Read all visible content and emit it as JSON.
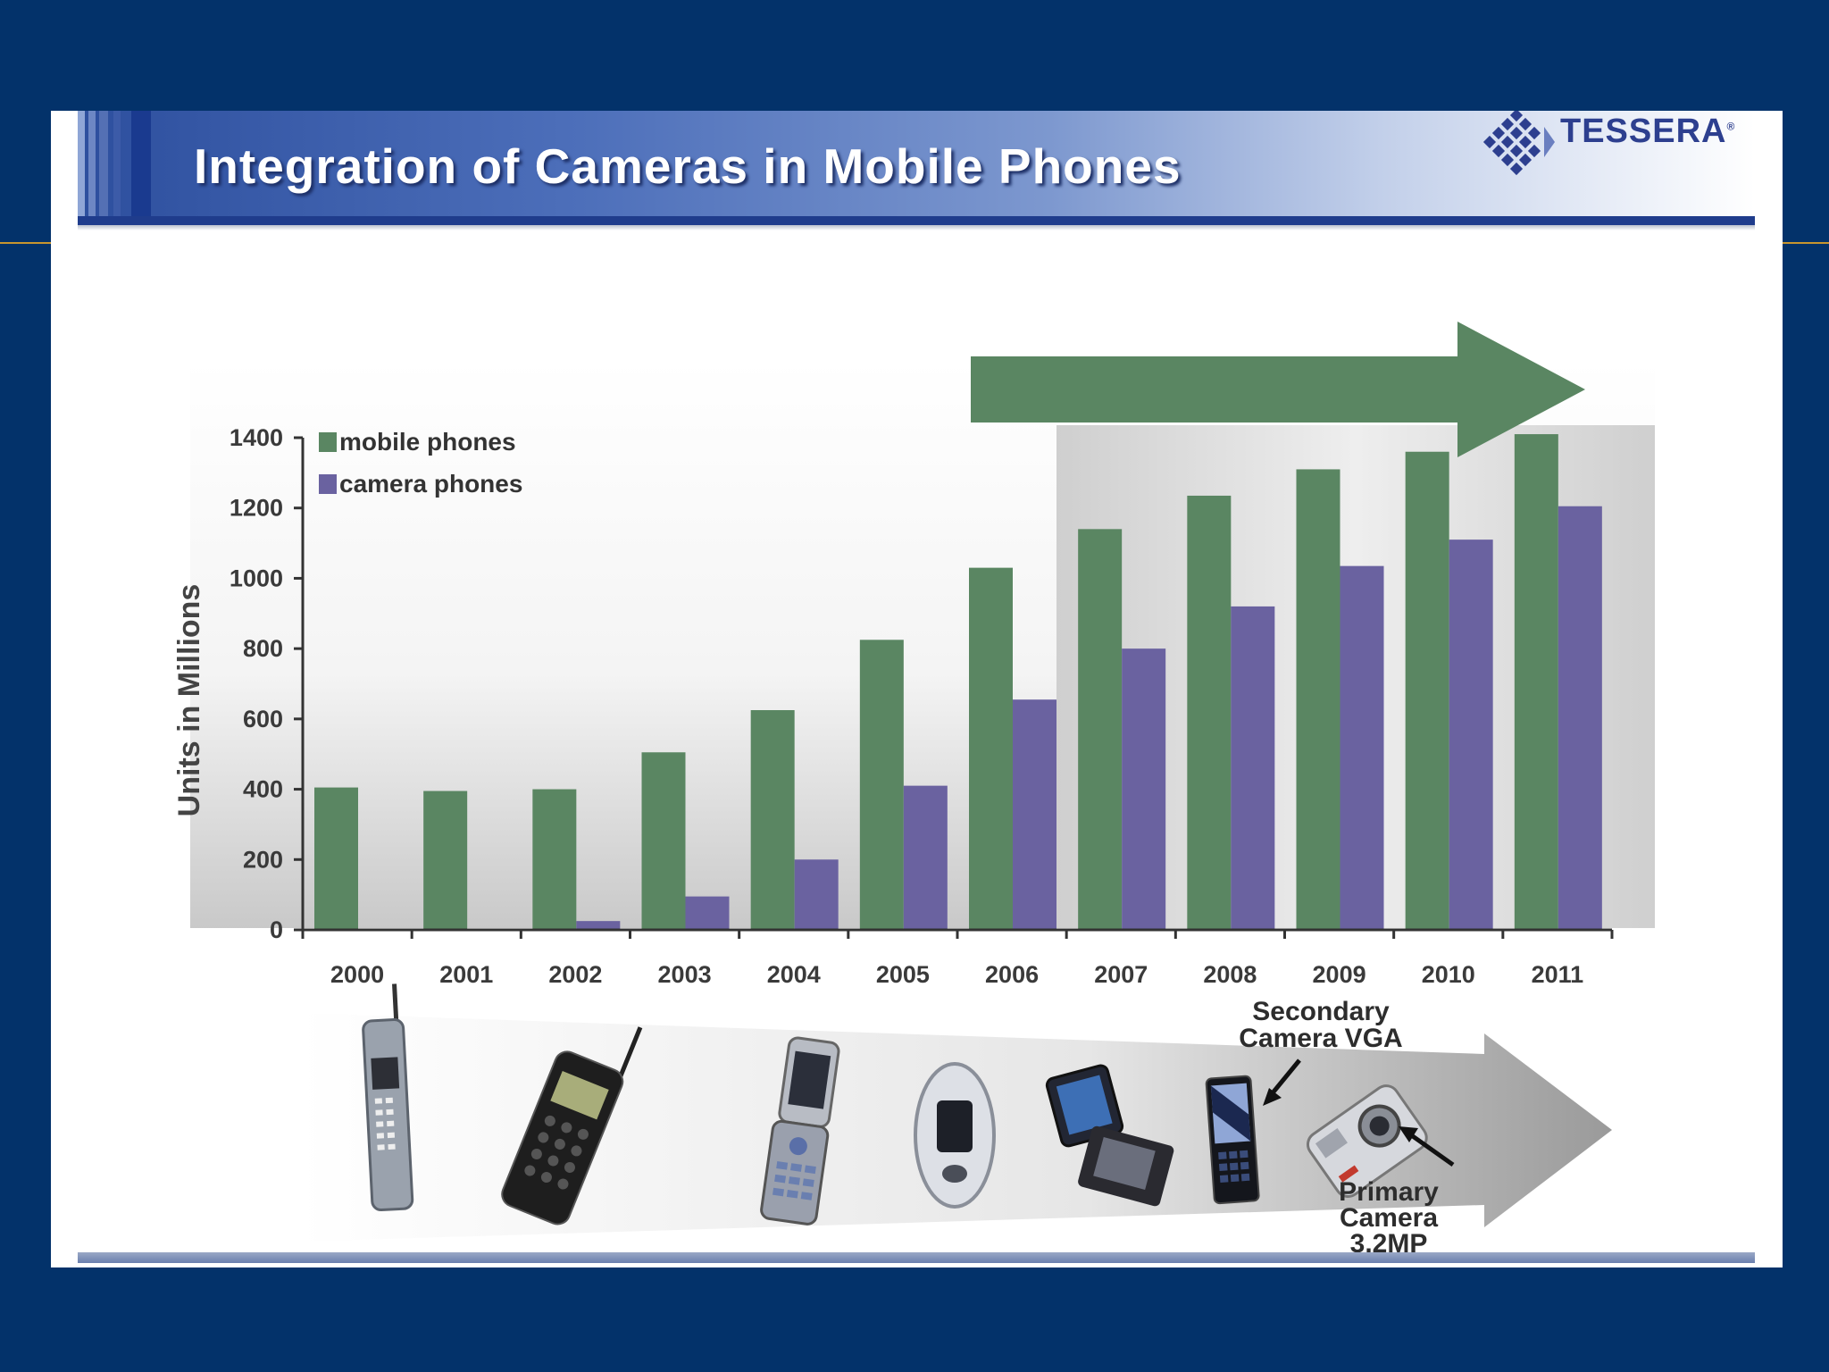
{
  "slide": {
    "title": "Integration of Cameras in Mobile Phones",
    "logo_text": "TESSERA",
    "logo_mark": "®"
  },
  "colors": {
    "background": "#03326a",
    "mobile": "#5a8662",
    "camera": "#6a62a0",
    "trend_arrow": "#5a8662",
    "title_band": "#4d6fba"
  },
  "chart_data": {
    "type": "bar",
    "title": "",
    "xlabel": "",
    "ylabel": "Units in Millions",
    "ylim": [
      0,
      1400
    ],
    "yticks": [
      0,
      200,
      400,
      600,
      800,
      1000,
      1200,
      1400
    ],
    "categories": [
      "2000",
      "2001",
      "2002",
      "2003",
      "2004",
      "2005",
      "2006",
      "2007",
      "2008",
      "2009",
      "2010",
      "2011"
    ],
    "series": [
      {
        "name": "mobile phones",
        "values": [
          405,
          395,
          400,
          505,
          625,
          825,
          1030,
          1140,
          1235,
          1310,
          1360,
          1410
        ]
      },
      {
        "name": "camera phones",
        "values": [
          0,
          0,
          25,
          95,
          200,
          410,
          655,
          800,
          920,
          1035,
          1110,
          1205
        ]
      }
    ],
    "legend_position": "top-left",
    "grid": false,
    "highlight_range": [
      "2007",
      "2011"
    ]
  },
  "phones_strip": {
    "icons": [
      "brick-phone-icon",
      "antenna-phone-icon",
      "flip-phone-icon",
      "clamshell-phone-icon",
      "razr-phone-icon",
      "slim-phone-icon",
      "camera-phone-icon"
    ],
    "callout_secondary": [
      "Secondary",
      "Camera VGA"
    ],
    "callout_primary": [
      "Primary",
      "Camera",
      "3.2MP"
    ]
  }
}
